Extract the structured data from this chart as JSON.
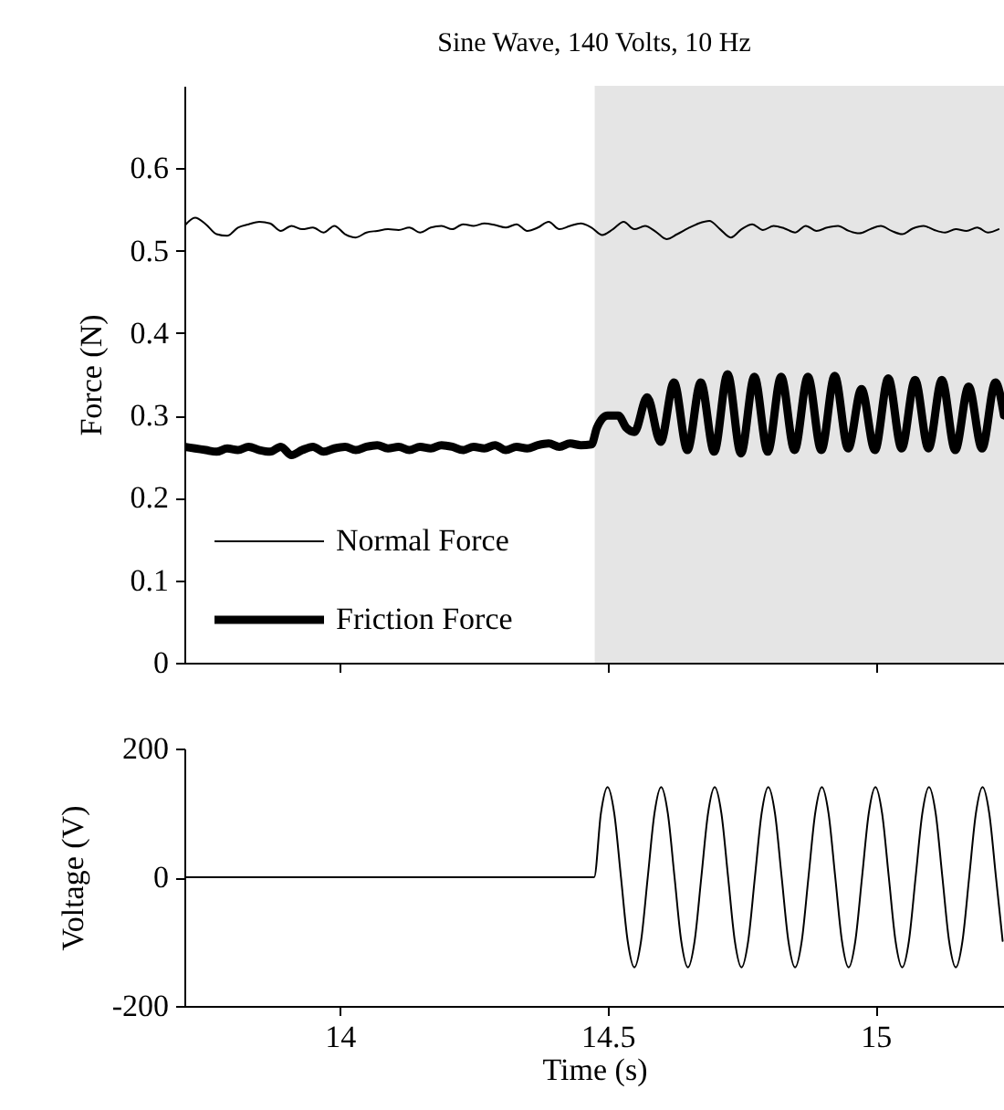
{
  "chart_data": [
    {
      "type": "line",
      "title": "Sine Wave, 140 Volts, 10 Hz",
      "ylabel": "Force (N)",
      "xlim": [
        13.71,
        15.24
      ],
      "xticks": [
        14,
        14.5,
        15
      ],
      "ylim": [
        0,
        0.7
      ],
      "yticks": [
        0,
        0.1,
        0.2,
        0.3,
        0.4,
        0.5,
        0.6
      ],
      "tick_labels": "y",
      "legend": "bottom left",
      "bands": [
        {
          "axis": "x",
          "from": 14.476,
          "to": 15.24,
          "color": "#e5e5e5"
        }
      ],
      "series": [
        {
          "name": "Normal Force",
          "color": "#000000",
          "x": [
            13.71,
            13.73,
            13.75,
            13.77,
            13.79,
            13.81,
            13.83,
            13.85,
            13.87,
            13.89,
            13.91,
            13.93,
            13.95,
            13.97,
            13.99,
            14.01,
            14.03,
            14.05,
            14.07,
            14.09,
            14.11,
            14.13,
            14.15,
            14.17,
            14.19,
            14.21,
            14.23,
            14.25,
            14.27,
            14.29,
            14.31,
            14.33,
            14.35,
            14.37,
            14.39,
            14.41,
            14.43,
            14.45,
            14.47,
            14.49,
            14.51,
            14.53,
            14.55,
            14.57,
            14.59,
            14.61,
            14.63,
            14.65,
            14.67,
            14.69,
            14.71,
            14.73,
            14.75,
            14.77,
            14.79,
            14.81,
            14.83,
            14.85,
            14.87,
            14.89,
            14.91,
            14.93,
            14.95,
            14.97,
            14.99,
            15.01,
            15.03,
            15.05,
            15.07,
            15.09,
            15.11,
            15.13,
            15.15,
            15.17,
            15.19,
            15.21,
            15.23
          ],
          "values": [
            0.53,
            0.54,
            0.532,
            0.52,
            0.518,
            0.528,
            0.532,
            0.535,
            0.533,
            0.524,
            0.53,
            0.526,
            0.528,
            0.522,
            0.53,
            0.52,
            0.516,
            0.522,
            0.524,
            0.526,
            0.525,
            0.528,
            0.522,
            0.528,
            0.53,
            0.526,
            0.532,
            0.53,
            0.533,
            0.531,
            0.528,
            0.532,
            0.524,
            0.528,
            0.535,
            0.526,
            0.53,
            0.533,
            0.528,
            0.519,
            0.526,
            0.535,
            0.526,
            0.53,
            0.523,
            0.514,
            0.52,
            0.527,
            0.533,
            0.536,
            0.526,
            0.516,
            0.526,
            0.532,
            0.525,
            0.53,
            0.527,
            0.522,
            0.53,
            0.524,
            0.528,
            0.53,
            0.524,
            0.521,
            0.526,
            0.53,
            0.524,
            0.52,
            0.527,
            0.53,
            0.525,
            0.522,
            0.526,
            0.524,
            0.528,
            0.522,
            0.526
          ]
        },
        {
          "name": "Friction Force",
          "color": "#000000",
          "x": [
            13.71,
            13.73,
            13.75,
            13.77,
            13.79,
            13.81,
            13.83,
            13.85,
            13.87,
            13.89,
            13.91,
            13.93,
            13.95,
            13.97,
            13.99,
            14.01,
            14.03,
            14.05,
            14.07,
            14.09,
            14.11,
            14.13,
            14.15,
            14.17,
            14.19,
            14.21,
            14.23,
            14.25,
            14.27,
            14.29,
            14.31,
            14.33,
            14.35,
            14.37,
            14.39,
            14.41,
            14.43,
            14.45,
            14.47,
            14.48,
            14.5,
            14.52,
            14.535,
            14.55,
            14.574,
            14.599,
            14.624,
            14.649,
            14.674,
            14.699,
            14.724,
            14.749,
            14.774,
            14.799,
            14.824,
            14.849,
            14.874,
            14.899,
            14.924,
            14.949,
            14.974,
            14.999,
            15.024,
            15.049,
            15.074,
            15.099,
            15.124,
            15.149,
            15.174,
            15.199,
            15.224,
            15.24
          ],
          "values": [
            0.262,
            0.26,
            0.258,
            0.256,
            0.26,
            0.258,
            0.262,
            0.258,
            0.256,
            0.262,
            0.252,
            0.258,
            0.262,
            0.256,
            0.26,
            0.262,
            0.258,
            0.262,
            0.264,
            0.26,
            0.262,
            0.258,
            0.262,
            0.26,
            0.264,
            0.262,
            0.258,
            0.262,
            0.26,
            0.264,
            0.258,
            0.262,
            0.26,
            0.264,
            0.266,
            0.262,
            0.266,
            0.264,
            0.265,
            0.285,
            0.3,
            0.3,
            0.285,
            0.28,
            0.322,
            0.268,
            0.34,
            0.258,
            0.34,
            0.256,
            0.35,
            0.254,
            0.347,
            0.256,
            0.347,
            0.258,
            0.347,
            0.258,
            0.348,
            0.26,
            0.332,
            0.258,
            0.345,
            0.26,
            0.343,
            0.26,
            0.343,
            0.258,
            0.335,
            0.26,
            0.34,
            0.3
          ]
        }
      ]
    },
    {
      "type": "line",
      "xlabel": "Time (s)",
      "ylabel": "Voltage (V)",
      "xlim": [
        13.71,
        15.24
      ],
      "xticks": [
        14,
        14.5,
        15
      ],
      "ylim": [
        -200,
        200
      ],
      "yticks": [
        -200,
        0,
        200
      ],
      "series": [
        {
          "color": "#000000",
          "x": [
            13.71,
            14.475,
            14.4875,
            14.5,
            14.5125,
            14.525,
            14.5375,
            14.55,
            14.5625,
            14.575,
            14.5875,
            14.6,
            14.6125,
            14.625,
            14.6375,
            14.65,
            14.6625,
            14.675,
            14.6875,
            14.7,
            14.7125,
            14.725,
            14.7375,
            14.75,
            14.7625,
            14.775,
            14.7875,
            14.8,
            14.8125,
            14.825,
            14.8375,
            14.85,
            14.8625,
            14.875,
            14.8875,
            14.9,
            14.9125,
            14.925,
            14.9375,
            14.95,
            14.9625,
            14.975,
            14.9875,
            15.0,
            15.0125,
            15.025,
            15.0375,
            15.05,
            15.0625,
            15.075,
            15.0875,
            15.1,
            15.1125,
            15.125,
            15.1375,
            15.15,
            15.1625,
            15.175,
            15.1875,
            15.2,
            15.2125,
            15.225,
            15.2375
          ],
          "values": [
            0,
            0,
            99,
            140,
            99,
            0,
            -99,
            -140,
            -99,
            0,
            99,
            140,
            99,
            0,
            -99,
            -140,
            -99,
            0,
            99,
            140,
            99,
            0,
            -99,
            -140,
            -99,
            0,
            99,
            140,
            99,
            0,
            -99,
            -140,
            -99,
            0,
            99,
            140,
            99,
            0,
            -99,
            -140,
            -99,
            0,
            99,
            140,
            99,
            0,
            -99,
            -140,
            -99,
            0,
            99,
            140,
            99,
            0,
            -99,
            -140,
            -99,
            0,
            99,
            140,
            99,
            0,
            -99
          ]
        }
      ]
    }
  ]
}
